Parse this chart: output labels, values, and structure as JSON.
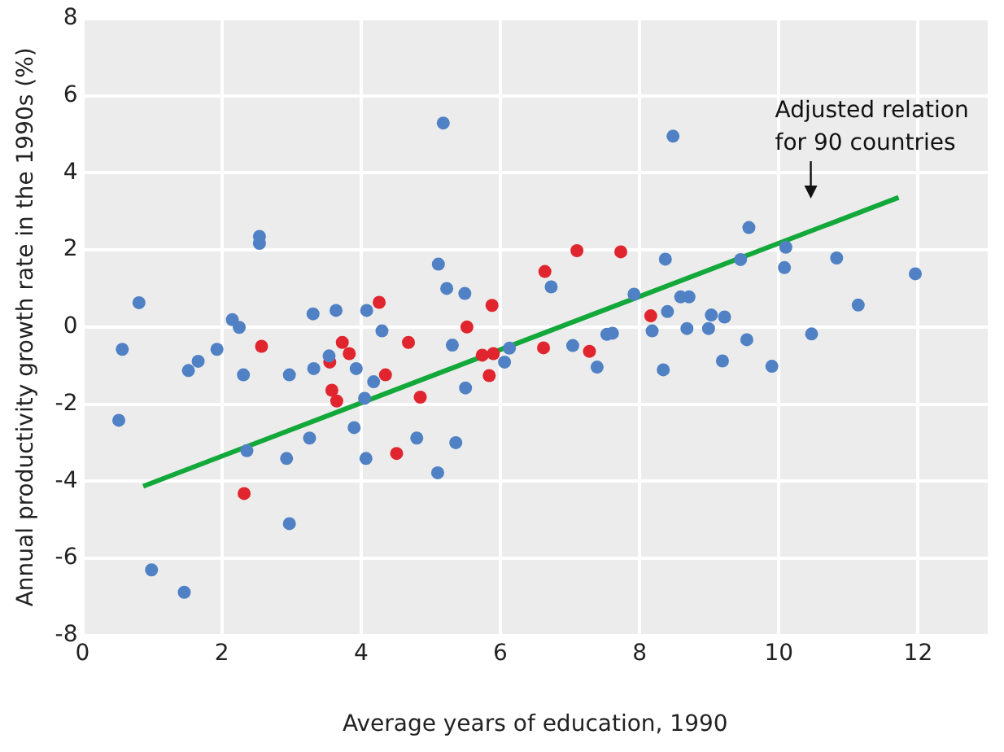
{
  "chart_data": {
    "type": "scatter",
    "xlabel": "Average years of education, 1990",
    "ylabel": "Annual productivity growth rate in the 1990s (%)",
    "xlim": [
      0,
      13
    ],
    "ylim": [
      -8,
      8
    ],
    "xticks": [
      0,
      2,
      4,
      6,
      8,
      10,
      12
    ],
    "yticks": [
      -8,
      -6,
      -4,
      -2,
      0,
      2,
      4,
      6,
      8
    ],
    "grid": true,
    "marker": "circle",
    "series": [
      {
        "color": "#4f81c4",
        "x": [
          0.81,
          0.57,
          0.52,
          0.99,
          1.46,
          1.52,
          1.66,
          1.93,
          2.15,
          2.25,
          2.54,
          2.54,
          2.31,
          2.36,
          2.97,
          2.97,
          2.93,
          3.26,
          3.31,
          3.32,
          3.64,
          3.54,
          3.93,
          4.08,
          4.3,
          4.18,
          4.05,
          3.9,
          4.07,
          5.18,
          8.48,
          5.11,
          5.23,
          5.49,
          5.31,
          5.5,
          4.8,
          5.36,
          5.1,
          6.13,
          6.06,
          6.73,
          7.04,
          7.39,
          7.53,
          7.61,
          7.92,
          8.37,
          8.4,
          8.18,
          8.34,
          8.59,
          8.71,
          8.68,
          9.57,
          10.1,
          10.08,
          9.45,
          10.83,
          11.96,
          11.14,
          9.03,
          9.22,
          8.99,
          9.54,
          9.19,
          9.9,
          10.47
        ],
        "values": [
          0.63,
          -0.58,
          -2.42,
          -6.3,
          -6.88,
          -1.13,
          -0.89,
          -0.58,
          0.19,
          -0.01,
          2.35,
          2.17,
          -1.24,
          -3.21,
          -5.1,
          -1.24,
          -3.41,
          -2.88,
          0.34,
          -1.08,
          0.43,
          -0.75,
          -1.08,
          0.43,
          -0.1,
          -1.42,
          -1.85,
          -2.61,
          -3.41,
          5.29,
          4.95,
          1.63,
          1.0,
          0.87,
          -0.47,
          -1.58,
          -2.88,
          -3.0,
          -3.78,
          -0.55,
          -0.91,
          1.04,
          -0.48,
          -1.04,
          -0.19,
          -0.16,
          0.85,
          1.76,
          0.4,
          -0.1,
          -1.11,
          0.78,
          0.78,
          -0.04,
          2.58,
          2.07,
          1.54,
          1.75,
          1.79,
          1.38,
          0.57,
          0.31,
          0.26,
          -0.04,
          -0.33,
          -0.88,
          -1.02,
          -0.18
        ]
      },
      {
        "color": "#e0252e",
        "x": [
          2.57,
          2.32,
          3.58,
          3.73,
          3.83,
          4.26,
          4.51,
          4.68,
          3.55,
          3.65,
          4.35,
          7.28,
          4.85,
          5.88,
          5.52,
          5.74,
          5.9,
          5.84,
          6.64,
          7.1,
          7.73,
          6.62,
          8.16
        ],
        "values": [
          -0.5,
          -4.32,
          -1.64,
          -0.4,
          -0.69,
          0.64,
          -3.28,
          -0.4,
          -0.91,
          -1.92,
          -1.24,
          -0.63,
          -1.82,
          0.56,
          0.0,
          -0.73,
          -0.69,
          -1.26,
          1.44,
          1.98,
          1.95,
          -0.54,
          0.29
        ]
      },
      {
        "type": "line",
        "color": "#13a83a",
        "marker": "none",
        "x": [
          0.87,
          11.72
        ],
        "values": [
          -4.13,
          3.36
        ]
      }
    ],
    "annotations": [
      "Adjusted relation\nfor 90 countries"
    ]
  }
}
